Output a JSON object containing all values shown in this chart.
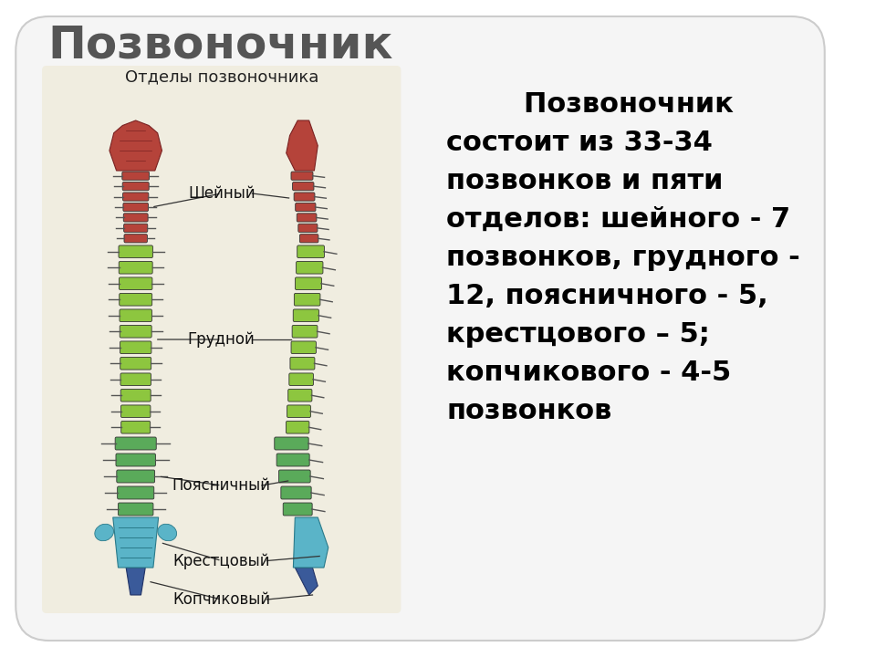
{
  "title": "Позвоночник",
  "title_fontsize": 36,
  "title_color": "#555555",
  "body_lines": [
    "        Позвоночник",
    "состоит из 33-34",
    "позвонков и пяти",
    "отделов: шейного - 7",
    "позвонков, грудного -",
    "12, поясничного - 5,",
    "крестцового – 5;",
    "копчикового - 4-5",
    "позвонков"
  ],
  "body_fontsize": 22,
  "background_color": "#ffffff",
  "card_bg": "#f5f5f5",
  "card_edge_color": "#cccccc",
  "image_label": "Отделы позвоночника",
  "spine_labels": [
    "Шейный",
    "Грудной",
    "Поясничный",
    "Крестцовый",
    "Копчиковый"
  ],
  "cervical_color": "#b5433a",
  "thoracic_color": "#8dc63f",
  "lumbar_color": "#5aaa5a",
  "sacral_color": "#5ab4c8",
  "coccyx_color": "#3a5a9a",
  "panel_bg": "#f0ede0"
}
